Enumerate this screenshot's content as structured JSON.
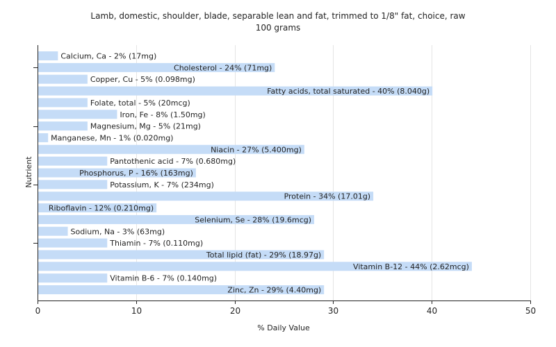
{
  "chart_data": {
    "type": "bar",
    "orientation": "horizontal",
    "title": "Lamb, domestic, shoulder, blade, separable lean and fat, trimmed to 1/8\" fat, choice, raw",
    "subtitle": "100 grams",
    "xlabel": "% Daily Value",
    "ylabel": "Nutrient",
    "xlim": [
      0,
      50
    ],
    "xticks": [
      "0",
      "10",
      "20",
      "30",
      "40",
      "50"
    ],
    "grid": true,
    "bar_color": "#c5dcf7",
    "categories": [
      "Calcium, Ca",
      "Cholesterol",
      "Copper, Cu",
      "Fatty acids, total saturated",
      "Folate, total",
      "Iron, Fe",
      "Magnesium, Mg",
      "Manganese, Mn",
      "Niacin",
      "Pantothenic acid",
      "Phosphorus, P",
      "Potassium, K",
      "Protein",
      "Riboflavin",
      "Selenium, Se",
      "Sodium, Na",
      "Thiamin",
      "Total lipid (fat)",
      "Vitamin B-12",
      "Vitamin B-6",
      "Zinc, Zn"
    ],
    "values": [
      2,
      24,
      5,
      40,
      5,
      8,
      5,
      1,
      27,
      7,
      16,
      7,
      34,
      12,
      28,
      3,
      7,
      29,
      44,
      7,
      29
    ],
    "labels": [
      "Calcium, Ca - 2% (17mg)",
      "Cholesterol - 24% (71mg)",
      "Copper, Cu - 5% (0.098mg)",
      "Fatty acids, total saturated - 40% (8.040g)",
      "Folate, total - 5% (20mcg)",
      "Iron, Fe - 8% (1.50mg)",
      "Magnesium, Mg - 5% (21mg)",
      "Manganese, Mn - 1% (0.020mg)",
      "Niacin - 27% (5.400mg)",
      "Pantothenic acid - 7% (0.680mg)",
      "Phosphorus, P - 16% (163mg)",
      "Potassium, K - 7% (234mg)",
      "Protein - 34% (17.01g)",
      "Riboflavin - 12% (0.210mg)",
      "Selenium, Se - 28% (19.6mcg)",
      "Sodium, Na - 3% (63mg)",
      "Thiamin - 7% (0.110mg)",
      "Total lipid (fat) - 29% (18.97g)",
      "Vitamin B-12 - 44% (2.62mcg)",
      "Vitamin B-6 - 7% (0.140mg)",
      "Zinc, Zn - 29% (4.40mg)"
    ]
  }
}
